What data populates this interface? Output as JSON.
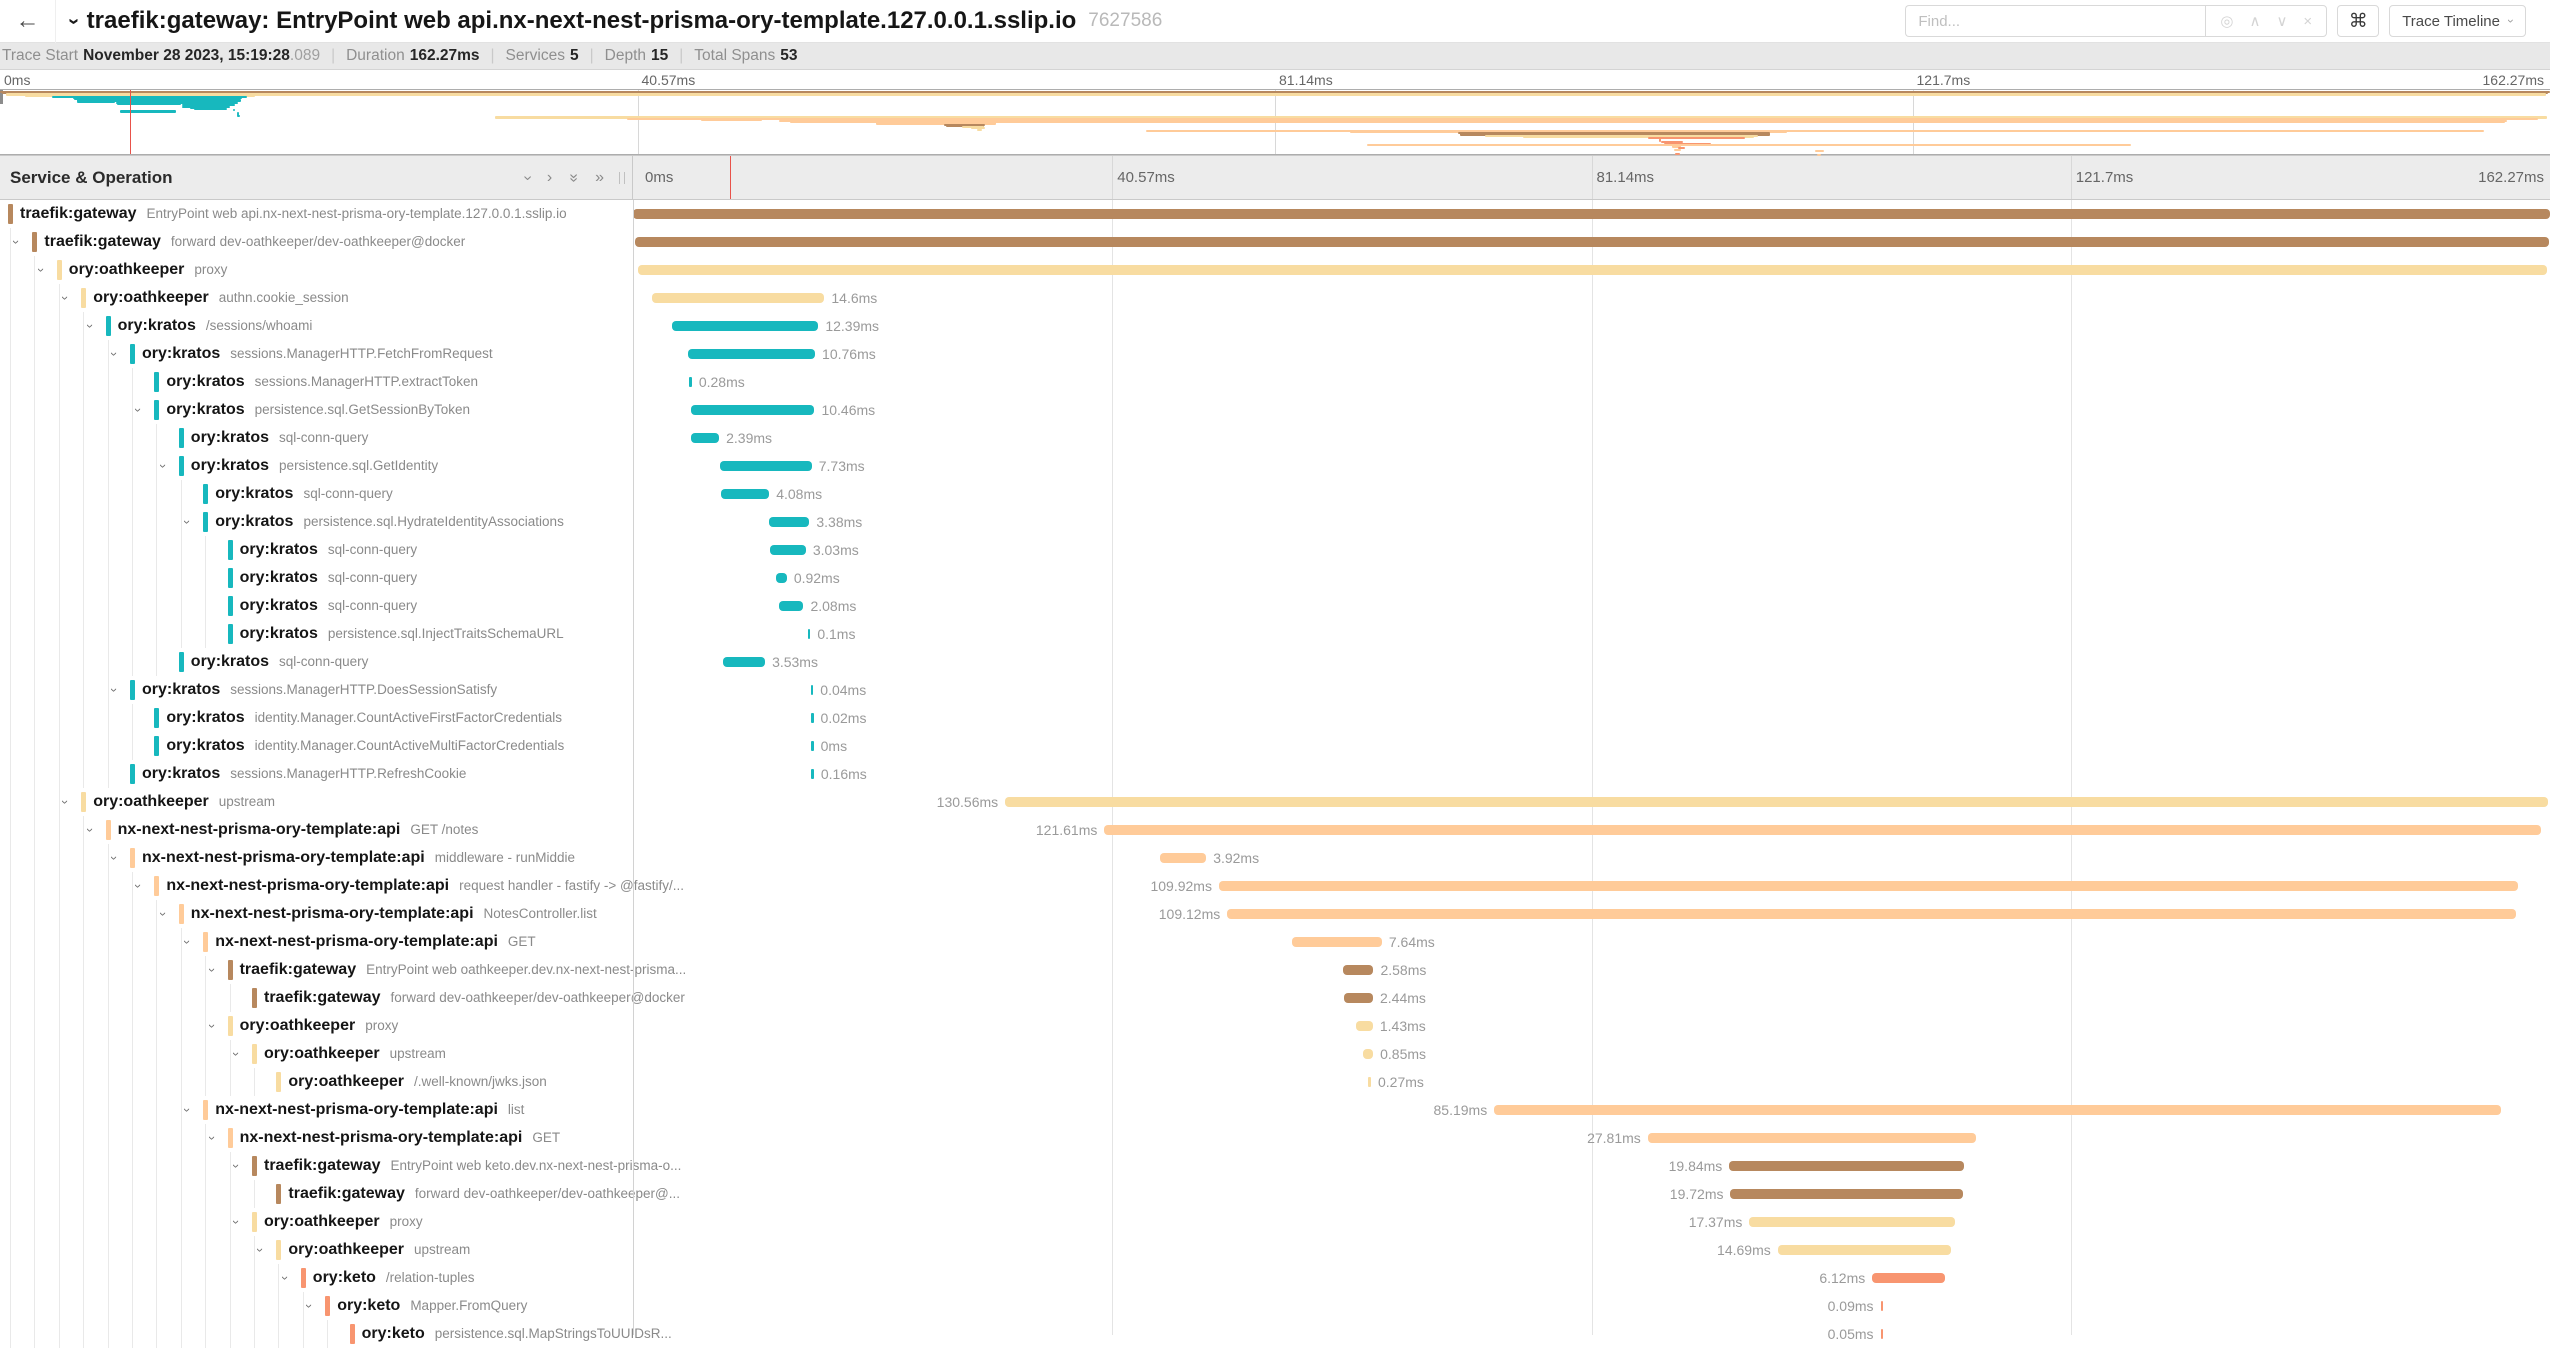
{
  "header": {
    "back_icon": "←",
    "title": "traefik:gateway: EntryPoint web api.nx-next-nest-prisma-ory-template.127.0.0.1.sslip.io",
    "trace_id": "7627586",
    "find_placeholder": "Find...",
    "match_icon": "◎",
    "prev_icon": "∧",
    "next_icon": "∨",
    "clear_icon": "×",
    "shortcut_icon": "⌘",
    "view_options_label": "Trace Timeline"
  },
  "summary": {
    "trace_start_label": "Trace Start",
    "trace_start_value": "November 28 2023, 15:19:28",
    "trace_start_fraction": ".089",
    "duration_label": "Duration",
    "duration_value": "162.27ms",
    "services_label": "Services",
    "services_value": "5",
    "depth_label": "Depth",
    "depth_value": "15",
    "total_spans_label": "Total Spans",
    "total_spans_value": "53"
  },
  "timeline": {
    "column_header": "Service & Operation",
    "ticks": [
      "0ms",
      "40.57ms",
      "81.14ms",
      "121.7ms",
      "162.27ms"
    ],
    "duration_ms": 162.27,
    "cursor_ms": 8.25
  },
  "service_colors": {
    "traefik:gateway": "#B7885E",
    "ory:oathkeeper": "#F8DCA1",
    "ory:kratos": "#17B8BE",
    "nx-next-nest-prisma-ory-template:api": "#FFCB99",
    "ory:keto": "#F89570"
  },
  "spans": [
    {
      "service": "traefik:gateway",
      "operation": "EntryPoint web api.nx-next-nest-prisma-ory-template.127.0.0.1.sslip.io",
      "depth": 0,
      "children": true,
      "start": 0,
      "duration": 162.27,
      "label": "",
      "label_side": "none"
    },
    {
      "service": "traefik:gateway",
      "operation": "forward dev-oathkeeper/dev-oathkeeper@docker",
      "depth": 1,
      "children": true,
      "start": 0.15,
      "duration": 162.0,
      "label": "",
      "label_side": "none"
    },
    {
      "service": "ory:oathkeeper",
      "operation": "proxy",
      "depth": 2,
      "children": true,
      "start": 0.4,
      "duration": 161.6,
      "label": "",
      "label_side": "none"
    },
    {
      "service": "ory:oathkeeper",
      "operation": "authn.cookie_session",
      "depth": 3,
      "children": true,
      "start": 1.6,
      "duration": 14.6,
      "label": "14.6ms",
      "label_side": "right"
    },
    {
      "service": "ory:kratos",
      "operation": "/sessions/whoami",
      "depth": 4,
      "children": true,
      "start": 3.3,
      "duration": 12.39,
      "label": "12.39ms",
      "label_side": "right"
    },
    {
      "service": "ory:kratos",
      "operation": "sessions.ManagerHTTP.FetchFromRequest",
      "depth": 5,
      "children": true,
      "start": 4.65,
      "duration": 10.76,
      "label": "10.76ms",
      "label_side": "right"
    },
    {
      "service": "ory:kratos",
      "operation": "sessions.ManagerHTTP.extractToken",
      "depth": 6,
      "children": false,
      "start": 4.7,
      "duration": 0.28,
      "label": "0.28ms",
      "label_side": "right"
    },
    {
      "service": "ory:kratos",
      "operation": "persistence.sql.GetSessionByToken",
      "depth": 6,
      "children": true,
      "start": 4.9,
      "duration": 10.46,
      "label": "10.46ms",
      "label_side": "right"
    },
    {
      "service": "ory:kratos",
      "operation": "sql-conn-query",
      "depth": 7,
      "children": false,
      "start": 4.9,
      "duration": 2.39,
      "label": "2.39ms",
      "label_side": "right"
    },
    {
      "service": "ory:kratos",
      "operation": "persistence.sql.GetIdentity",
      "depth": 7,
      "children": true,
      "start": 7.4,
      "duration": 7.73,
      "label": "7.73ms",
      "label_side": "right"
    },
    {
      "service": "ory:kratos",
      "operation": "sql-conn-query",
      "depth": 8,
      "children": false,
      "start": 7.45,
      "duration": 4.08,
      "label": "4.08ms",
      "label_side": "right"
    },
    {
      "service": "ory:kratos",
      "operation": "persistence.sql.HydrateIdentityAssociations",
      "depth": 8,
      "children": true,
      "start": 11.55,
      "duration": 3.38,
      "label": "3.38ms",
      "label_side": "right"
    },
    {
      "service": "ory:kratos",
      "operation": "sql-conn-query",
      "depth": 9,
      "children": false,
      "start": 11.6,
      "duration": 3.03,
      "label": "3.03ms",
      "label_side": "right"
    },
    {
      "service": "ory:kratos",
      "operation": "sql-conn-query",
      "depth": 9,
      "children": false,
      "start": 12.1,
      "duration": 0.92,
      "label": "0.92ms",
      "label_side": "right"
    },
    {
      "service": "ory:kratos",
      "operation": "sql-conn-query",
      "depth": 9,
      "children": false,
      "start": 12.35,
      "duration": 2.08,
      "label": "2.08ms",
      "label_side": "right"
    },
    {
      "service": "ory:kratos",
      "operation": "persistence.sql.InjectTraitsSchemaURL",
      "depth": 9,
      "children": false,
      "start": 14.8,
      "duration": 0.1,
      "label": "0.1ms",
      "label_side": "right"
    },
    {
      "service": "ory:kratos",
      "operation": "sql-conn-query",
      "depth": 7,
      "children": false,
      "start": 7.65,
      "duration": 3.53,
      "label": "3.53ms",
      "label_side": "right"
    },
    {
      "service": "ory:kratos",
      "operation": "sessions.ManagerHTTP.DoesSessionSatisfy",
      "depth": 5,
      "children": true,
      "start": 15.05,
      "duration": 0.04,
      "label": "0.04ms",
      "label_side": "right"
    },
    {
      "service": "ory:kratos",
      "operation": "identity.Manager.CountActiveFirstFactorCredentials",
      "depth": 6,
      "children": false,
      "start": 15.07,
      "duration": 0.02,
      "label": "0.02ms",
      "label_side": "right"
    },
    {
      "service": "ory:kratos",
      "operation": "identity.Manager.CountActiveMultiFactorCredentials",
      "depth": 6,
      "children": false,
      "start": 15.08,
      "duration": 0.005,
      "label": "0ms",
      "label_side": "right"
    },
    {
      "service": "ory:kratos",
      "operation": "sessions.ManagerHTTP.RefreshCookie",
      "depth": 5,
      "children": false,
      "start": 15.1,
      "duration": 0.16,
      "label": "0.16ms",
      "label_side": "right"
    },
    {
      "service": "ory:oathkeeper",
      "operation": "upstream",
      "depth": 3,
      "children": true,
      "start": 31.5,
      "duration": 130.56,
      "label": "130.56ms",
      "label_side": "left"
    },
    {
      "service": "nx-next-nest-prisma-ory-template:api",
      "operation": "GET /notes",
      "depth": 4,
      "children": true,
      "start": 39.9,
      "duration": 121.61,
      "label": "121.61ms",
      "label_side": "left"
    },
    {
      "service": "nx-next-nest-prisma-ory-template:api",
      "operation": "middleware - runMiddie",
      "depth": 5,
      "children": true,
      "start": 44.6,
      "duration": 3.92,
      "label": "3.92ms",
      "label_side": "right"
    },
    {
      "service": "nx-next-nest-prisma-ory-template:api",
      "operation": "request handler - fastify -> @fastify/...",
      "depth": 6,
      "children": true,
      "start": 49.6,
      "duration": 109.92,
      "label": "109.92ms",
      "label_side": "left"
    },
    {
      "service": "nx-next-nest-prisma-ory-template:api",
      "operation": "NotesController.list",
      "depth": 7,
      "children": true,
      "start": 50.3,
      "duration": 109.12,
      "label": "109.12ms",
      "label_side": "left"
    },
    {
      "service": "nx-next-nest-prisma-ory-template:api",
      "operation": "GET",
      "depth": 8,
      "children": true,
      "start": 55.75,
      "duration": 7.64,
      "label": "7.64ms",
      "label_side": "right"
    },
    {
      "service": "traefik:gateway",
      "operation": "EntryPoint web oathkeeper.dev.nx-next-nest-prisma...",
      "depth": 9,
      "children": true,
      "start": 60.1,
      "duration": 2.58,
      "label": "2.58ms",
      "label_side": "right"
    },
    {
      "service": "traefik:gateway",
      "operation": "forward dev-oathkeeper/dev-oathkeeper@docker",
      "depth": 10,
      "children": false,
      "start": 60.2,
      "duration": 2.44,
      "label": "2.44ms",
      "label_side": "right"
    },
    {
      "service": "ory:oathkeeper",
      "operation": "proxy",
      "depth": 9,
      "children": true,
      "start": 61.2,
      "duration": 1.43,
      "label": "1.43ms",
      "label_side": "right"
    },
    {
      "service": "ory:oathkeeper",
      "operation": "upstream",
      "depth": 10,
      "children": true,
      "start": 61.8,
      "duration": 0.85,
      "label": "0.85ms",
      "label_side": "right"
    },
    {
      "service": "ory:oathkeeper",
      "operation": "/.well-known/jwks.json",
      "depth": 11,
      "children": false,
      "start": 62.2,
      "duration": 0.27,
      "label": "0.27ms",
      "label_side": "right"
    },
    {
      "service": "nx-next-nest-prisma-ory-template:api",
      "operation": "list",
      "depth": 8,
      "children": true,
      "start": 72.9,
      "duration": 85.19,
      "label": "85.19ms",
      "label_side": "left"
    },
    {
      "service": "nx-next-nest-prisma-ory-template:api",
      "operation": "GET",
      "depth": 9,
      "children": true,
      "start": 85.9,
      "duration": 27.81,
      "label": "27.81ms",
      "label_side": "left"
    },
    {
      "service": "traefik:gateway",
      "operation": "EntryPoint web keto.dev.nx-next-nest-prisma-o...",
      "depth": 10,
      "children": true,
      "start": 92.8,
      "duration": 19.84,
      "label": "19.84ms",
      "label_side": "left"
    },
    {
      "service": "traefik:gateway",
      "operation": "forward dev-oathkeeper/dev-oathkeeper@...",
      "depth": 11,
      "children": false,
      "start": 92.9,
      "duration": 19.72,
      "label": "19.72ms",
      "label_side": "left"
    },
    {
      "service": "ory:oathkeeper",
      "operation": "proxy",
      "depth": 10,
      "children": true,
      "start": 94.5,
      "duration": 17.37,
      "label": "17.37ms",
      "label_side": "left"
    },
    {
      "service": "ory:oathkeeper",
      "operation": "upstream",
      "depth": 11,
      "children": true,
      "start": 96.9,
      "duration": 14.69,
      "label": "14.69ms",
      "label_side": "left"
    },
    {
      "service": "ory:keto",
      "operation": "/relation-tuples",
      "depth": 12,
      "children": true,
      "start": 104.9,
      "duration": 6.12,
      "label": "6.12ms",
      "label_side": "left"
    },
    {
      "service": "ory:keto",
      "operation": "Mapper.FromQuery",
      "depth": 13,
      "children": true,
      "start": 105.6,
      "duration": 0.09,
      "label": "0.09ms",
      "label_side": "left"
    },
    {
      "service": "ory:keto",
      "operation": "persistence.sql.MapStringsToUUIDsR...",
      "depth": 14,
      "children": false,
      "start": 105.6,
      "duration": 0.05,
      "label": "0.05ms",
      "label_side": "left"
    }
  ],
  "minimap_extra_spans": [
    {
      "service": "ory:keto",
      "start": 105.7,
      "duration": 1.4,
      "row": 41
    },
    {
      "service": "ory:keto",
      "start": 105.9,
      "duration": 0.7,
      "row": 42
    },
    {
      "service": "ory:keto",
      "start": 106.1,
      "duration": 2.8,
      "row": 43
    },
    {
      "service": "nx-next-nest-prisma-ory-template:api",
      "start": 87.0,
      "duration": 48.6,
      "row": 44
    },
    {
      "service": "nx-next-nest-prisma-ory-template:api",
      "start": 106.4,
      "duration": 0.6,
      "row": 45
    },
    {
      "service": "ory:keto",
      "start": 106.8,
      "duration": 0.4,
      "row": 46
    },
    {
      "service": "nx-next-nest-prisma-ory-template:api",
      "start": 106.5,
      "duration": 0.5,
      "row": 48
    },
    {
      "service": "nx-next-nest-prisma-ory-template:api",
      "start": 115.5,
      "duration": 0.6,
      "row": 49
    },
    {
      "service": "ory:keto",
      "start": 106.6,
      "duration": 0.3,
      "row": 51
    },
    {
      "service": "nx-next-nest-prisma-ory-template:api",
      "start": 115.6,
      "duration": 0.3,
      "row": 52
    }
  ]
}
